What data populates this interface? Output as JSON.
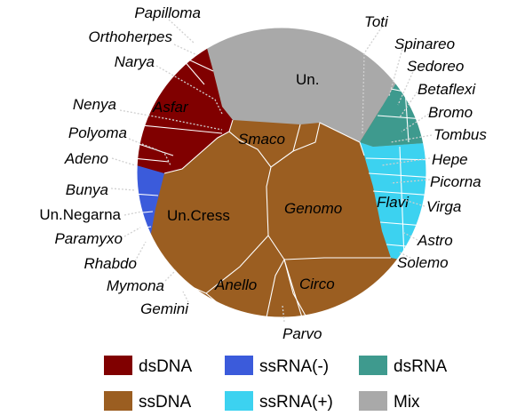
{
  "legend": [
    {
      "key": "dsDNA",
      "label": "dsDNA",
      "color": "#800000"
    },
    {
      "key": "ssRNA_neg",
      "label": "ssRNA(-)",
      "color": "#3b5bdb"
    },
    {
      "key": "dsRNA",
      "label": "dsRNA",
      "color": "#3e9a8e"
    },
    {
      "key": "ssDNA",
      "label": "ssDNA",
      "color": "#9b5e21"
    },
    {
      "key": "ssRNA_pos",
      "label": "ssRNA(+)",
      "color": "#3cd2f0"
    },
    {
      "key": "Mix",
      "label": "Mix",
      "color": "#a9a9a9"
    }
  ],
  "cells": {
    "un": "Un.",
    "asfar": "Asfar",
    "smaco": "Smaco",
    "un_cress": "Un.Cress",
    "genomo": "Genomo",
    "anello": "Anello",
    "circo": "Circo",
    "flavi": "Flavi"
  },
  "outer_labels": {
    "papilloma": "Papilloma",
    "orthoherpes": "Orthoherpes",
    "narya": "Narya",
    "nenya": "Nenya",
    "polyoma": "Polyoma",
    "adeno": "Adeno",
    "bunya": "Bunya",
    "un_negarna": "Un.Negarna",
    "paramyxo": "Paramyxo",
    "rhabdo": "Rhabdo",
    "mymona": "Mymona",
    "gemini": "Gemini",
    "parvo": "Parvo",
    "toti": "Toti",
    "spinareo": "Spinareo",
    "sedoreo": "Sedoreo",
    "betaflexi": "Betaflexi",
    "bromo": "Bromo",
    "tombus": "Tombus",
    "hepe": "Hepe",
    "picorna": "Picorna",
    "virga": "Virga",
    "astro": "Astro",
    "solemo": "Solemo"
  }
}
